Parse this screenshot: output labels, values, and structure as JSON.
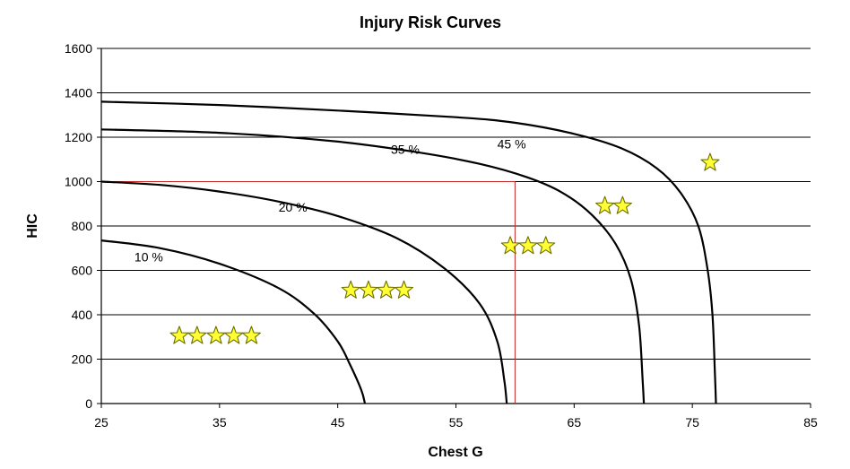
{
  "chart_data": {
    "type": "line",
    "title": "Injury Risk Curves",
    "xlabel": "Chest G",
    "ylabel": "HIC",
    "xlim": [
      25,
      85
    ],
    "ylim": [
      0,
      1600
    ],
    "x_ticks": [
      25,
      35,
      45,
      55,
      65,
      75,
      85
    ],
    "y_ticks": [
      0,
      200,
      400,
      600,
      800,
      1000,
      1200,
      1400,
      1600
    ],
    "grid": "horizontal",
    "legend": "none",
    "series": [
      {
        "name": "10 %",
        "points": [
          [
            25,
            735
          ],
          [
            30,
            700
          ],
          [
            35,
            630
          ],
          [
            40,
            520
          ],
          [
            43,
            405
          ],
          [
            45,
            280
          ],
          [
            46,
            180
          ],
          [
            47,
            60
          ],
          [
            47.3,
            0
          ]
        ]
      },
      {
        "name": "20 %",
        "points": [
          [
            25,
            1000
          ],
          [
            30,
            985
          ],
          [
            35,
            955
          ],
          [
            40,
            910
          ],
          [
            45,
            845
          ],
          [
            50,
            745
          ],
          [
            54,
            610
          ],
          [
            57,
            450
          ],
          [
            58.5,
            280
          ],
          [
            59.1,
            100
          ],
          [
            59.3,
            0
          ]
        ]
      },
      {
        "name": "35 %",
        "points": [
          [
            25,
            1235
          ],
          [
            35,
            1220
          ],
          [
            45,
            1180
          ],
          [
            52,
            1130
          ],
          [
            57,
            1080
          ],
          [
            61,
            1020
          ],
          [
            64,
            950
          ],
          [
            66.5,
            850
          ],
          [
            68.5,
            720
          ],
          [
            69.8,
            560
          ],
          [
            70.5,
            350
          ],
          [
            70.8,
            100
          ],
          [
            70.9,
            0
          ]
        ]
      },
      {
        "name": "45 %",
        "points": [
          [
            25,
            1360
          ],
          [
            35,
            1345
          ],
          [
            45,
            1320
          ],
          [
            55,
            1290
          ],
          [
            60,
            1265
          ],
          [
            65,
            1215
          ],
          [
            69,
            1150
          ],
          [
            72,
            1060
          ],
          [
            74,
            950
          ],
          [
            75.5,
            800
          ],
          [
            76.3,
            600
          ],
          [
            76.7,
            400
          ],
          [
            76.9,
            150
          ],
          [
            77,
            0
          ]
        ]
      }
    ],
    "series_label_positions": [
      [
        27.8,
        640
      ],
      [
        40,
        865
      ],
      [
        49.5,
        1125
      ],
      [
        58.5,
        1150
      ]
    ],
    "reference_lines": {
      "color": "#c62828",
      "horizontal": {
        "y": 1000,
        "x_from": 25,
        "x_to": 60
      },
      "vertical": {
        "x": 60,
        "y_from": 0,
        "y_to": 1000
      }
    },
    "star_groups": [
      {
        "stars": 5,
        "y": 305,
        "x": [
          31.6,
          33.1,
          34.7,
          36.2,
          37.7
        ]
      },
      {
        "stars": 4,
        "y": 510,
        "x": [
          46.1,
          47.6,
          49.1,
          50.6
        ]
      },
      {
        "stars": 3,
        "y": 710,
        "x": [
          59.6,
          61.1,
          62.6
        ]
      },
      {
        "stars": 2,
        "y": 890,
        "x": [
          67.6,
          69.1
        ]
      },
      {
        "stars": 1,
        "y": 1085,
        "x": [
          76.5
        ]
      }
    ],
    "colors": {
      "curve": "#000000",
      "grid": "#000000",
      "star_fill": "#ffff33",
      "star_stroke": "#6e6e00"
    }
  }
}
